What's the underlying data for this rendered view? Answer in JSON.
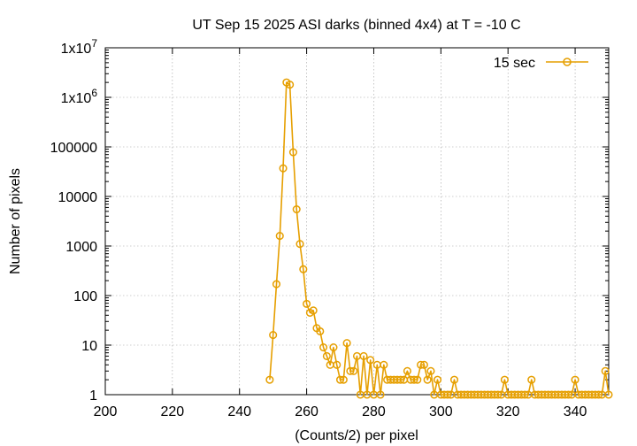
{
  "chart_data": {
    "type": "line",
    "title": "UT Sep 15 2025 ASI darks (binned 4x4) at T = -10 C",
    "xlabel": "(Counts/2) per pixel",
    "ylabel": "Number of pixels",
    "xlim": [
      200,
      350
    ],
    "ylim": [
      1,
      10000000
    ],
    "yscale": "log",
    "grid": true,
    "legend_position": "top-right",
    "x_ticks": [
      200,
      220,
      240,
      260,
      280,
      300,
      320,
      340
    ],
    "x_tick_labels": [
      "200",
      "220",
      "240",
      "260",
      "280",
      "300",
      "320",
      "340"
    ],
    "y_ticks": [
      1,
      10,
      100,
      1000,
      10000,
      100000,
      1000000,
      10000000
    ],
    "y_tick_labels": [
      {
        "base": "1",
        "exp": ""
      },
      {
        "base": "10",
        "exp": ""
      },
      {
        "base": "100",
        "exp": ""
      },
      {
        "base": "1000",
        "exp": ""
      },
      {
        "base": "10000",
        "exp": ""
      },
      {
        "base": "100000",
        "exp": ""
      },
      {
        "base": "1x10",
        "exp": "6"
      },
      {
        "base": "1x10",
        "exp": "7"
      }
    ],
    "series": [
      {
        "name": "15 sec",
        "color": "#e69f00",
        "marker": "circle",
        "x": [
          249,
          250,
          251,
          252,
          253,
          254,
          255,
          256,
          257,
          258,
          259,
          260,
          261,
          262,
          263,
          264,
          265,
          266,
          267,
          268,
          269,
          270,
          271,
          272,
          273,
          274,
          275,
          276,
          277,
          278,
          279,
          280,
          281,
          282,
          283,
          284,
          285,
          286,
          287,
          288,
          289,
          290,
          291,
          292,
          293,
          294,
          295,
          296,
          297,
          298,
          299,
          300,
          301,
          302,
          303,
          304,
          305,
          306,
          307,
          308,
          309,
          310,
          311,
          312,
          313,
          314,
          315,
          316,
          317,
          318,
          319,
          320,
          321,
          322,
          323,
          324,
          325,
          326,
          327,
          328,
          329,
          330,
          331,
          332,
          333,
          334,
          335,
          336,
          337,
          338,
          339,
          340,
          341,
          342,
          343,
          344,
          345,
          346,
          347,
          348,
          349,
          350
        ],
        "y": [
          2,
          16,
          170,
          1600,
          37000,
          2000000,
          1800000,
          78000,
          5500,
          1100,
          340,
          68,
          45,
          50,
          22,
          19,
          9,
          6,
          4,
          9,
          4,
          2,
          2,
          11,
          3,
          3,
          6,
          1,
          6,
          1,
          5,
          1,
          4,
          1,
          4,
          2,
          2,
          2,
          2,
          2,
          2,
          3,
          2,
          2,
          2,
          4,
          4,
          2,
          3,
          1,
          2,
          1,
          1,
          1,
          1,
          2,
          1,
          1,
          1,
          1,
          1,
          1,
          1,
          1,
          1,
          1,
          1,
          1,
          1,
          1,
          2,
          1,
          1,
          1,
          1,
          1,
          1,
          1,
          2,
          1,
          1,
          1,
          1,
          1,
          1,
          1,
          1,
          1,
          1,
          1,
          1,
          2,
          1,
          1,
          1,
          1,
          1,
          1,
          1,
          1,
          3,
          1
        ]
      }
    ]
  }
}
